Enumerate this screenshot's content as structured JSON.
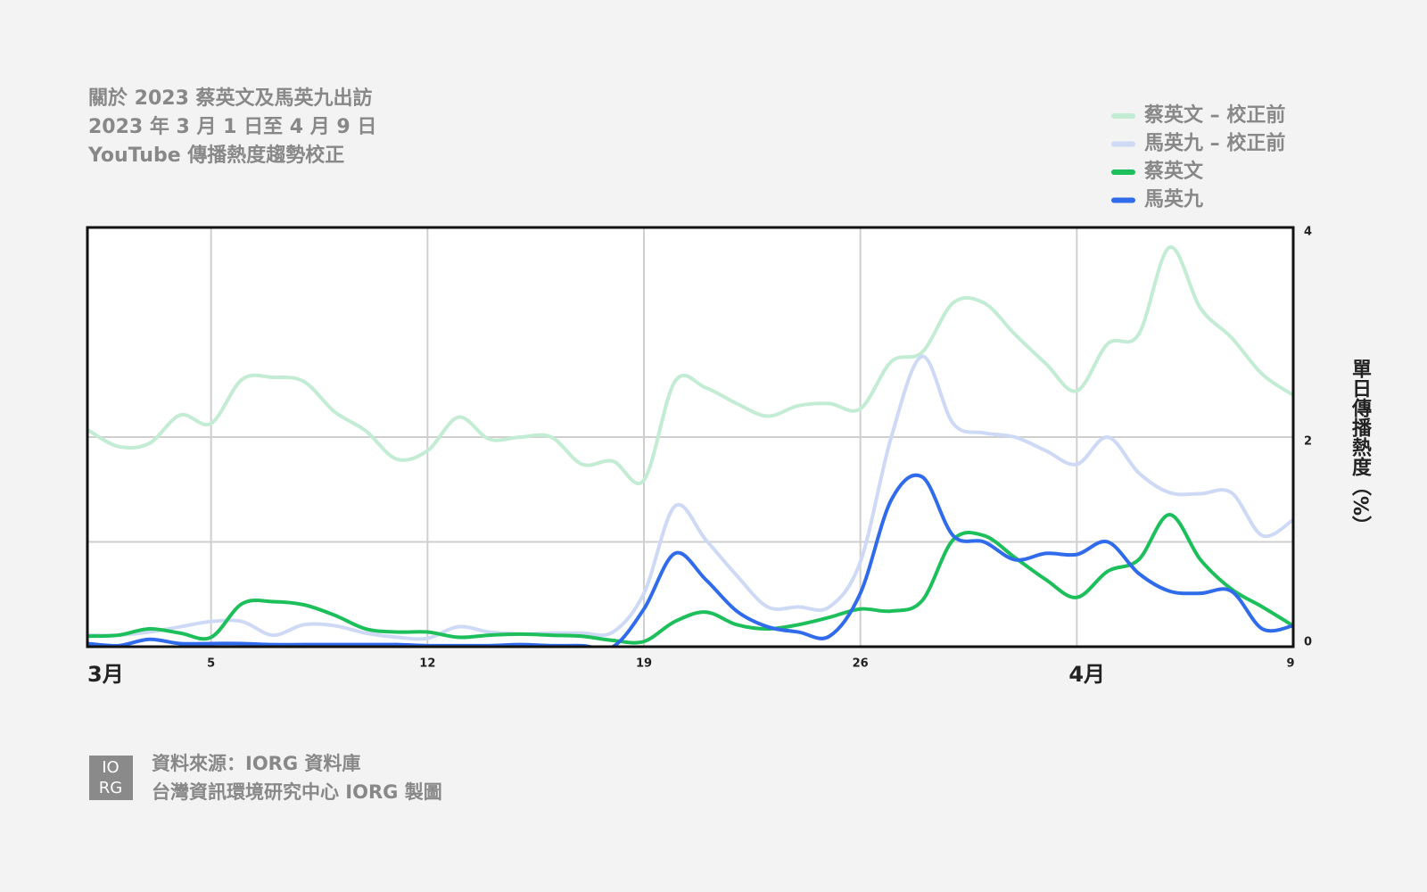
{
  "chart_data": {
    "type": "line",
    "title": [
      "關於 2023 蔡英文及馬英九出訪",
      "2023 年 3 月 1 日至 4 月 9 日",
      "YouTube 傳播熱度趨勢校正"
    ],
    "y_label": "單日傳播熱度（%）",
    "categories": [
      "3月",
      null,
      null,
      null,
      "5",
      null,
      null,
      null,
      null,
      null,
      null,
      "12",
      null,
      null,
      null,
      null,
      null,
      null,
      "19",
      null,
      null,
      null,
      null,
      null,
      null,
      "26",
      null,
      null,
      null,
      null,
      null,
      null,
      "4月",
      null,
      null,
      null,
      null,
      null,
      null,
      "9"
    ],
    "series": [
      {
        "name": "蔡英文 – 校正前",
        "color": "#c3ecd4",
        "values": [
          2.07,
          1.91,
          1.94,
          2.21,
          2.13,
          2.55,
          2.57,
          2.53,
          2.24,
          2.06,
          1.79,
          1.87,
          2.19,
          1.98,
          2.0,
          2.0,
          1.74,
          1.77,
          1.59,
          2.53,
          2.47,
          2.32,
          2.2,
          2.3,
          2.32,
          2.27,
          2.72,
          2.81,
          3.28,
          3.28,
          2.98,
          2.7,
          2.44,
          2.89,
          2.98,
          3.81,
          3.23,
          2.95,
          2.6,
          2.4
        ]
      },
      {
        "name": "馬英九 – 校正前",
        "color": "#ced9f5",
        "values": [
          0.11,
          0.11,
          0.14,
          0.19,
          0.24,
          0.24,
          0.11,
          0.21,
          0.2,
          0.13,
          0.09,
          0.08,
          0.19,
          0.14,
          0.12,
          0.13,
          0.13,
          0.14,
          0.51,
          1.34,
          1.02,
          0.68,
          0.38,
          0.38,
          0.38,
          0.81,
          2.0,
          2.77,
          2.13,
          2.04,
          2.0,
          1.87,
          1.74,
          2.0,
          1.66,
          1.47,
          1.46,
          1.47,
          1.06,
          1.21
        ]
      },
      {
        "name": "蔡英文",
        "color": "#1dbf5b",
        "values": [
          0.1,
          0.11,
          0.17,
          0.13,
          0.09,
          0.41,
          0.43,
          0.4,
          0.3,
          0.17,
          0.14,
          0.14,
          0.09,
          0.11,
          0.12,
          0.11,
          0.1,
          0.06,
          0.05,
          0.24,
          0.33,
          0.21,
          0.17,
          0.21,
          0.28,
          0.36,
          0.34,
          0.44,
          1.02,
          1.06,
          0.85,
          0.64,
          0.47,
          0.72,
          0.83,
          1.26,
          0.83,
          0.55,
          0.38,
          0.2
        ]
      },
      {
        "name": "馬英九",
        "color": "#2f6bea",
        "values": [
          0.03,
          0.01,
          0.07,
          0.03,
          0.03,
          0.03,
          0.02,
          0.02,
          0.02,
          0.02,
          0.02,
          0.01,
          0.01,
          0.01,
          0.02,
          0.01,
          0.01,
          0,
          0.36,
          0.89,
          0.64,
          0.34,
          0.19,
          0.14,
          0.1,
          0.51,
          1.4,
          1.62,
          1.06,
          1.0,
          0.83,
          0.89,
          0.88,
          1.0,
          0.7,
          0.53,
          0.51,
          0.53,
          0.17,
          0.2
        ]
      }
    ],
    "ylim": [
      0,
      4
    ],
    "yticks": [
      0,
      2,
      4
    ],
    "ygrid": [
      1,
      2
    ],
    "xgrid": [
      4,
      11,
      18,
      25,
      32
    ],
    "legend": "top-right",
    "source": "資料來源：IORG 資料庫",
    "credit": "台灣資訊環境研究中心 IORG 製圖",
    "logo": [
      "IO",
      "RG"
    ]
  }
}
